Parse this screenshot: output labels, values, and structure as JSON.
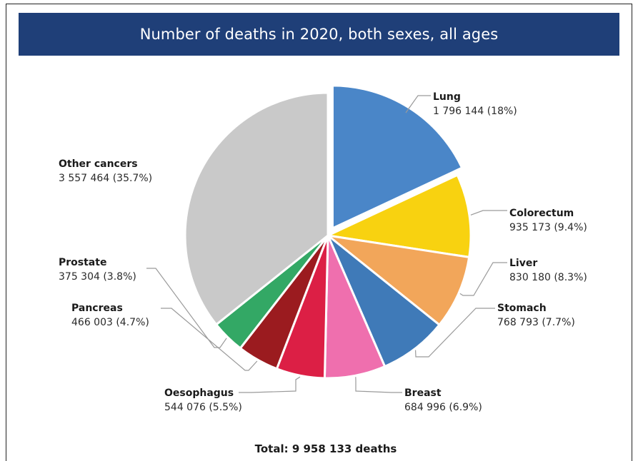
{
  "chart_data": {
    "type": "pie",
    "title": "Number of deaths in 2020, both sexes, all ages",
    "total_label": "Total: 9 958 133 deaths",
    "slices": [
      {
        "name": "Lung",
        "value_label": "1 796 144 (18%)",
        "value": 1796144,
        "percent": 18.0,
        "color": "#4a86c8",
        "exploded": true
      },
      {
        "name": "Colorectum",
        "value_label": "935 173 (9.4%)",
        "value": 935173,
        "percent": 9.4,
        "color": "#f8d210"
      },
      {
        "name": "Liver",
        "value_label": "830 180 (8.3%)",
        "value": 830180,
        "percent": 8.3,
        "color": "#f2a65a"
      },
      {
        "name": "Stomach",
        "value_label": "768 793 (7.7%)",
        "value": 768793,
        "percent": 7.7,
        "color": "#3f7ab8"
      },
      {
        "name": "Breast",
        "value_label": "684 996 (6.9%)",
        "value": 684996,
        "percent": 6.9,
        "color": "#ef6fae"
      },
      {
        "name": "Oesophagus",
        "value_label": "544 076 (5.5%)",
        "value": 544076,
        "percent": 5.5,
        "color": "#dc1f45"
      },
      {
        "name": "Pancreas",
        "value_label": "466 003 (4.7%)",
        "value": 466003,
        "percent": 4.7,
        "color": "#9b1b1f"
      },
      {
        "name": "Prostate",
        "value_label": "375 304 (3.8%)",
        "value": 375304,
        "percent": 3.8,
        "color": "#33a865"
      },
      {
        "name": "Other cancers",
        "value_label": "3 557 464 (35.7%)",
        "value": 3557464,
        "percent": 35.7,
        "color": "#c9c9c9"
      }
    ]
  }
}
